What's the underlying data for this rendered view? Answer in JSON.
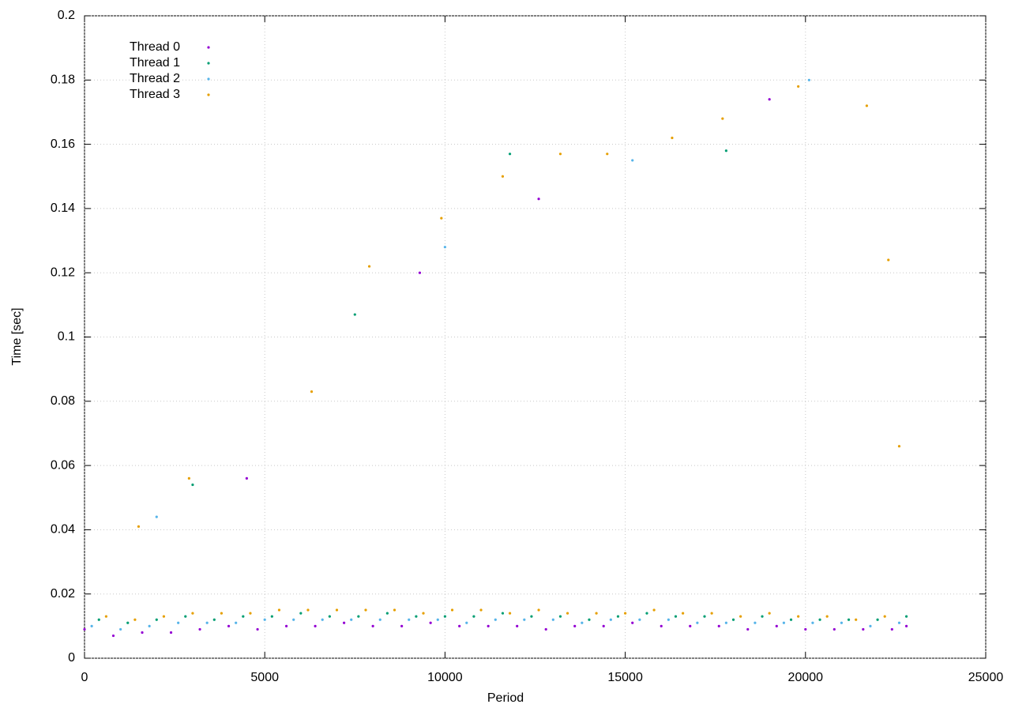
{
  "chart_data": {
    "type": "scatter",
    "x_label": "Period",
    "y_label": "Time [sec]",
    "xlim": [
      0,
      25000
    ],
    "xticks": [
      0,
      5000,
      10000,
      15000,
      20000,
      25000
    ],
    "ylim": [
      0,
      0.2
    ],
    "yticks": [
      0,
      0.02,
      0.04,
      0.06,
      0.08,
      0.1,
      0.12,
      0.14,
      0.16,
      0.18,
      0.2
    ],
    "grid": true,
    "legend": "top-left",
    "series": [
      {
        "name": "Thread 0",
        "color": "#9400d3",
        "x": [
          0,
          800,
          1600,
          2400,
          3200,
          4000,
          4800,
          5600,
          6400,
          7200,
          8000,
          8800,
          9600,
          10400,
          11200,
          12000,
          12800,
          13600,
          14400,
          15200,
          16000,
          16800,
          17600,
          18400,
          19200,
          20000,
          20800,
          21600,
          22400,
          22800,
          4500,
          9300,
          12600,
          19000
        ],
        "values": [
          0.009,
          0.007,
          0.008,
          0.008,
          0.009,
          0.01,
          0.009,
          0.01,
          0.01,
          0.011,
          0.01,
          0.01,
          0.011,
          0.01,
          0.01,
          0.01,
          0.009,
          0.01,
          0.01,
          0.011,
          0.01,
          0.01,
          0.01,
          0.009,
          0.01,
          0.009,
          0.009,
          0.009,
          0.009,
          0.01,
          0.056,
          0.12,
          0.143,
          0.174
        ]
      },
      {
        "name": "Thread 1",
        "color": "#009e73",
        "x": [
          400,
          1200,
          2000,
          2800,
          3600,
          4400,
          5200,
          6000,
          6800,
          7600,
          8400,
          9200,
          10000,
          10800,
          11600,
          12400,
          13200,
          14000,
          14800,
          15600,
          16400,
          17200,
          18000,
          18800,
          19600,
          20400,
          21200,
          22000,
          22800,
          3000,
          7500,
          11800,
          17800
        ],
        "values": [
          0.012,
          0.011,
          0.012,
          0.013,
          0.012,
          0.013,
          0.013,
          0.014,
          0.013,
          0.013,
          0.014,
          0.013,
          0.013,
          0.013,
          0.014,
          0.013,
          0.013,
          0.012,
          0.013,
          0.014,
          0.013,
          0.013,
          0.012,
          0.013,
          0.012,
          0.012,
          0.012,
          0.012,
          0.013,
          0.054,
          0.107,
          0.157,
          0.158
        ]
      },
      {
        "name": "Thread 2",
        "color": "#56b4e9",
        "x": [
          200,
          1000,
          1800,
          2600,
          3400,
          4200,
          5000,
          5800,
          6600,
          7400,
          8200,
          9000,
          9800,
          10600,
          11400,
          12200,
          13000,
          13800,
          14600,
          15400,
          16200,
          17000,
          17800,
          18600,
          19400,
          20200,
          21000,
          21800,
          22600,
          2000,
          10000,
          15200,
          20100
        ],
        "values": [
          0.01,
          0.009,
          0.01,
          0.011,
          0.011,
          0.011,
          0.012,
          0.012,
          0.012,
          0.012,
          0.012,
          0.012,
          0.012,
          0.011,
          0.012,
          0.012,
          0.012,
          0.011,
          0.012,
          0.012,
          0.012,
          0.011,
          0.011,
          0.011,
          0.011,
          0.011,
          0.011,
          0.01,
          0.011,
          0.044,
          0.128,
          0.155,
          0.18
        ]
      },
      {
        "name": "Thread 3",
        "color": "#e69f00",
        "x": [
          600,
          1400,
          2200,
          3000,
          3800,
          4600,
          5400,
          6200,
          7000,
          7800,
          8600,
          9400,
          10200,
          11000,
          11800,
          12600,
          13400,
          14200,
          15000,
          15800,
          16600,
          17400,
          18200,
          19000,
          19800,
          20600,
          21400,
          22200,
          1500,
          2900,
          6300,
          7900,
          9900,
          11600,
          13200,
          14500,
          16300,
          17700,
          19800,
          21700,
          22300,
          22600
        ],
        "values": [
          0.013,
          0.012,
          0.013,
          0.014,
          0.014,
          0.014,
          0.015,
          0.015,
          0.015,
          0.015,
          0.015,
          0.014,
          0.015,
          0.015,
          0.014,
          0.015,
          0.014,
          0.014,
          0.014,
          0.015,
          0.014,
          0.014,
          0.013,
          0.014,
          0.013,
          0.013,
          0.012,
          0.013,
          0.041,
          0.056,
          0.083,
          0.122,
          0.137,
          0.15,
          0.157,
          0.157,
          0.162,
          0.168,
          0.178,
          0.172,
          0.124,
          0.066
        ]
      }
    ]
  }
}
